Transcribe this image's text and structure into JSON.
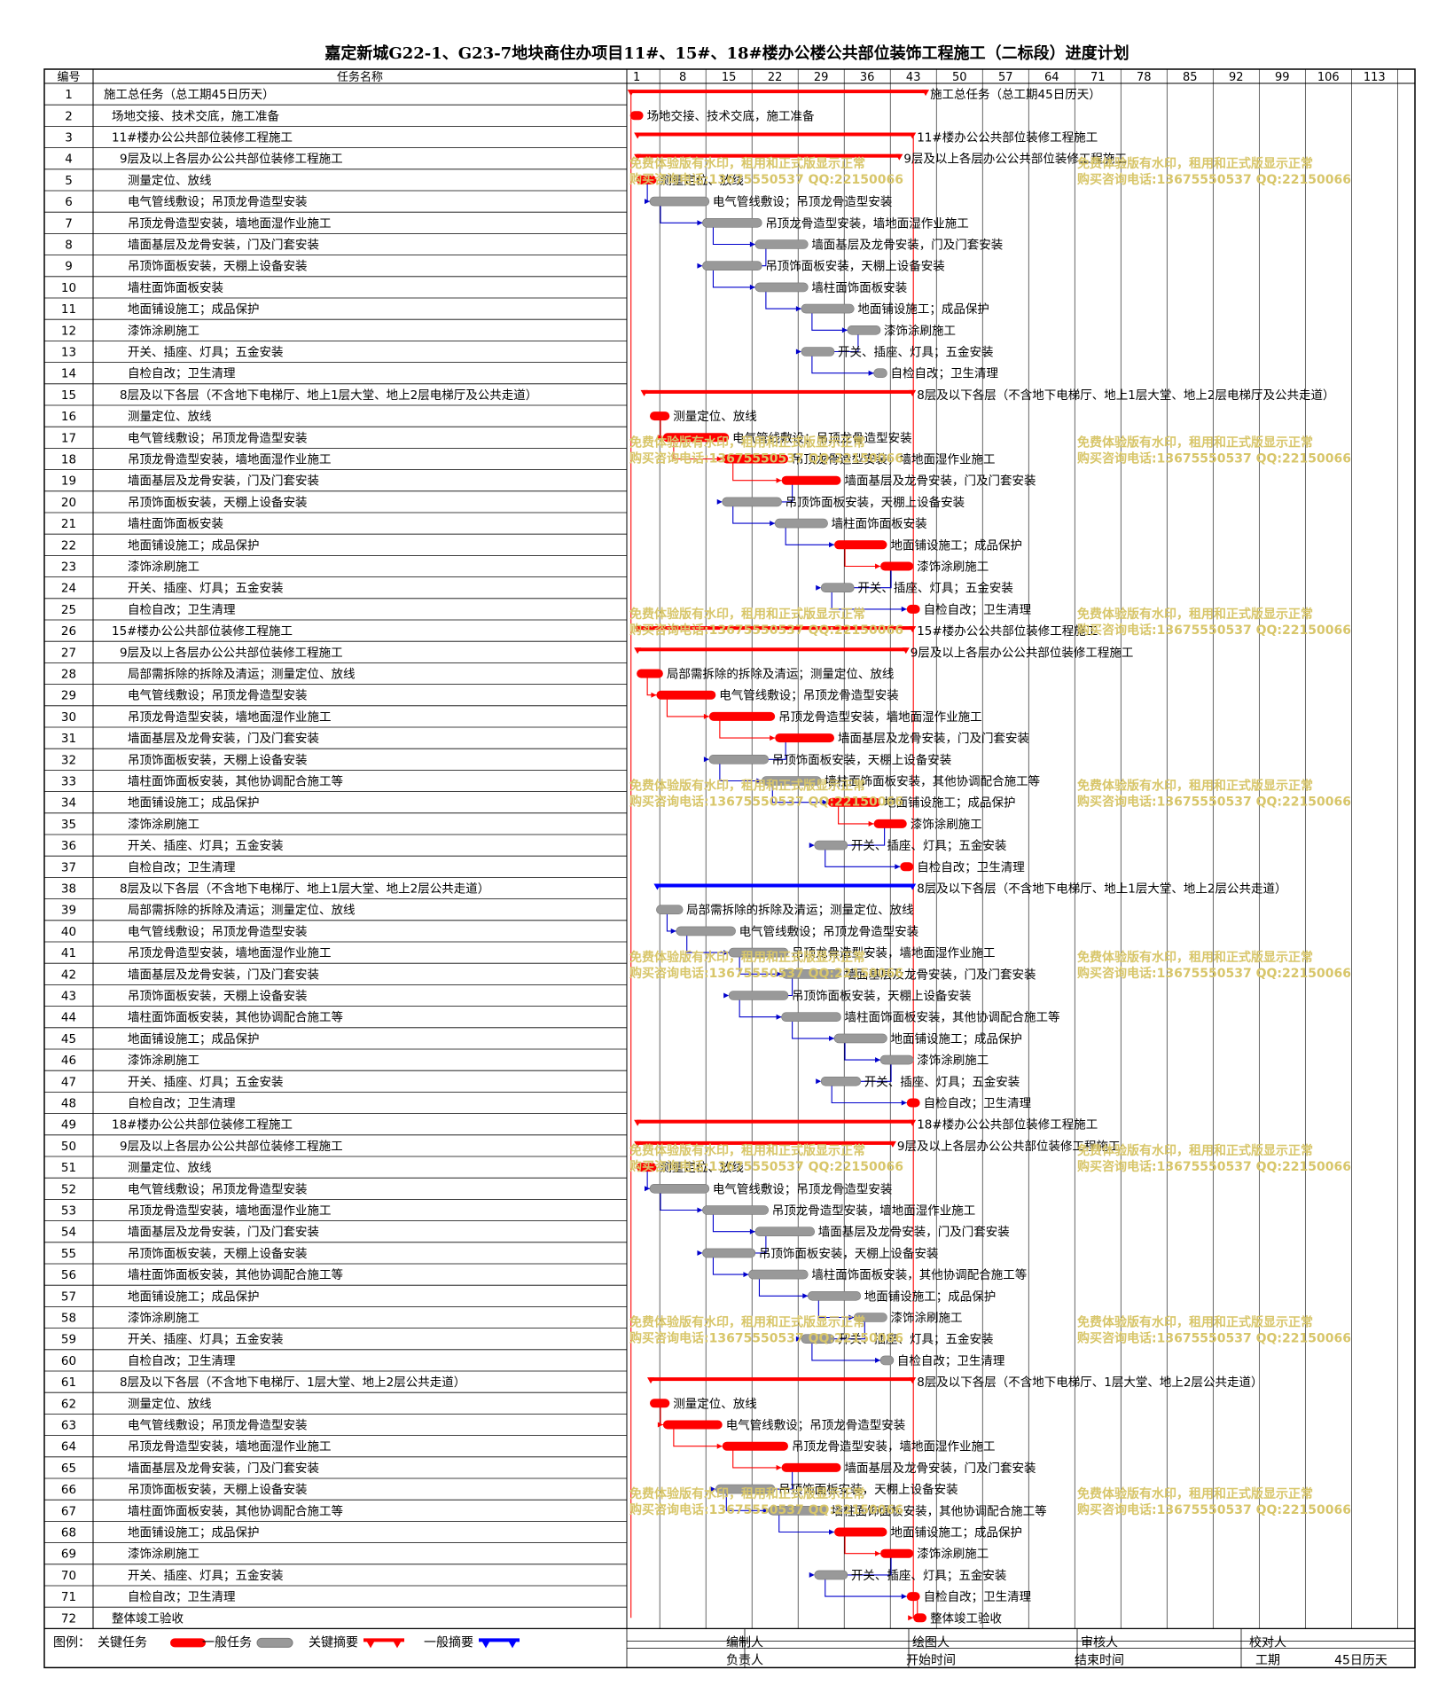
{
  "title": "嘉定新城G22-1、G23-7地块商住办项目11#、15#、18#楼办公楼公共部位装饰工程施工（二标段）进度计划",
  "header": {
    "no_label": "编号",
    "name_label": "任务名称"
  },
  "chart_data": {
    "type": "gantt",
    "title": "嘉定新城G22-1、G23-7地块商住办项目11#、15#、18#楼办公楼公共部位装饰工程施工（二标段）进度计划",
    "time_axis_ticks": [
      1,
      8,
      15,
      22,
      29,
      36,
      43,
      50,
      57,
      64,
      71,
      78,
      85,
      92,
      99,
      106,
      113
    ],
    "x_range": [
      -0.5,
      119
    ],
    "legend_position": "bottom-left",
    "colors": {
      "critical": "#ff0000",
      "normal": "#999999",
      "summary_critical": "#ff0000",
      "summary_normal": "#0000ff",
      "link": "#0000cc",
      "critical_link": "#ff0000"
    },
    "tasks": [
      {
        "id": 1,
        "indent": 0,
        "name": "施工总任务（总工期45日历天）",
        "start": 0,
        "end": 45,
        "kind": "summary_critical"
      },
      {
        "id": 2,
        "indent": 1,
        "name": "场地交接、技术交底，施工准备",
        "start": 0,
        "end": 2,
        "kind": "critical"
      },
      {
        "id": 3,
        "indent": 1,
        "name": "11#楼办公公共部位装修工程施工",
        "start": 1,
        "end": 43,
        "kind": "summary_critical"
      },
      {
        "id": 4,
        "indent": 2,
        "name": "9层及以上各层办公公共部位装修工程施工",
        "start": 1,
        "end": 41,
        "kind": "summary_critical"
      },
      {
        "id": 5,
        "indent": 3,
        "name": "测量定位、放线",
        "start": 1,
        "end": 4,
        "kind": "critical"
      },
      {
        "id": 6,
        "indent": 3,
        "name": "电气管线敷设；吊顶龙骨造型安装",
        "start": 3,
        "end": 12,
        "kind": "normal"
      },
      {
        "id": 7,
        "indent": 3,
        "name": "吊顶龙骨造型安装，墙地面湿作业施工",
        "start": 11,
        "end": 20,
        "kind": "normal"
      },
      {
        "id": 8,
        "indent": 3,
        "name": "墙面基层及龙骨安装，门及门套安装",
        "start": 19,
        "end": 27,
        "kind": "normal"
      },
      {
        "id": 9,
        "indent": 3,
        "name": "吊顶饰面板安装，天棚上设备安装",
        "start": 11,
        "end": 20,
        "kind": "normal"
      },
      {
        "id": 10,
        "indent": 3,
        "name": "墙柱面饰面板安装",
        "start": 19,
        "end": 27,
        "kind": "normal"
      },
      {
        "id": 11,
        "indent": 3,
        "name": "地面铺设施工；成品保护",
        "start": 26,
        "end": 34,
        "kind": "normal"
      },
      {
        "id": 12,
        "indent": 3,
        "name": "漆饰涂刷施工",
        "start": 33,
        "end": 38,
        "kind": "normal"
      },
      {
        "id": 13,
        "indent": 3,
        "name": "开关、插座、灯具；五金安装",
        "start": 26,
        "end": 31,
        "kind": "normal"
      },
      {
        "id": 14,
        "indent": 3,
        "name": "自检自改；卫生清理",
        "start": 37,
        "end": 39,
        "kind": "normal"
      },
      {
        "id": 15,
        "indent": 2,
        "name": "8层及以下各层（不含地下电梯厅、地上1层大堂、地上2层电梯厅及公共走道）",
        "start": 2,
        "end": 43,
        "kind": "summary_critical"
      },
      {
        "id": 16,
        "indent": 3,
        "name": "测量定位、放线",
        "start": 3,
        "end": 6,
        "kind": "critical"
      },
      {
        "id": 17,
        "indent": 3,
        "name": "电气管线敷设；吊顶龙骨造型安装",
        "start": 5,
        "end": 15,
        "kind": "critical"
      },
      {
        "id": 18,
        "indent": 3,
        "name": "吊顶龙骨造型安装，墙地面湿作业施工",
        "start": 14,
        "end": 24,
        "kind": "critical"
      },
      {
        "id": 19,
        "indent": 3,
        "name": "墙面基层及龙骨安装，门及门套安装",
        "start": 23,
        "end": 32,
        "kind": "critical"
      },
      {
        "id": 20,
        "indent": 3,
        "name": "吊顶饰面板安装，天棚上设备安装",
        "start": 14,
        "end": 23,
        "kind": "normal"
      },
      {
        "id": 21,
        "indent": 3,
        "name": "墙柱面饰面板安装",
        "start": 22,
        "end": 30,
        "kind": "normal"
      },
      {
        "id": 22,
        "indent": 3,
        "name": "地面铺设施工；成品保护",
        "start": 31,
        "end": 39,
        "kind": "critical"
      },
      {
        "id": 23,
        "indent": 3,
        "name": "漆饰涂刷施工",
        "start": 38,
        "end": 43,
        "kind": "critical"
      },
      {
        "id": 24,
        "indent": 3,
        "name": "开关、插座、灯具；五金安装",
        "start": 29,
        "end": 34,
        "kind": "normal"
      },
      {
        "id": 25,
        "indent": 3,
        "name": "自检自改；卫生清理",
        "start": 42,
        "end": 44,
        "kind": "critical"
      },
      {
        "id": 26,
        "indent": 1,
        "name": "15#楼办公公共部位装修工程施工",
        "start": 1,
        "end": 43,
        "kind": "summary_critical"
      },
      {
        "id": 27,
        "indent": 2,
        "name": "9层及以上各层办公公共部位装修工程施工",
        "start": 1,
        "end": 42,
        "kind": "summary_critical"
      },
      {
        "id": 28,
        "indent": 3,
        "name": "局部需拆除的拆除及清运；测量定位、放线",
        "start": 1,
        "end": 5,
        "kind": "critical"
      },
      {
        "id": 29,
        "indent": 3,
        "name": "电气管线敷设；吊顶龙骨造型安装",
        "start": 4,
        "end": 13,
        "kind": "critical"
      },
      {
        "id": 30,
        "indent": 3,
        "name": "吊顶龙骨造型安装，墙地面湿作业施工",
        "start": 12,
        "end": 22,
        "kind": "critical"
      },
      {
        "id": 31,
        "indent": 3,
        "name": "墙面基层及龙骨安装，门及门套安装",
        "start": 22,
        "end": 31,
        "kind": "critical"
      },
      {
        "id": 32,
        "indent": 3,
        "name": "吊顶饰面板安装，天棚上设备安装",
        "start": 12,
        "end": 21,
        "kind": "normal"
      },
      {
        "id": 33,
        "indent": 3,
        "name": "墙柱面饰面板安装，其他协调配合施工等",
        "start": 20,
        "end": 29,
        "kind": "normal"
      },
      {
        "id": 34,
        "indent": 3,
        "name": "地面铺设施工；成品保护",
        "start": 30,
        "end": 38,
        "kind": "critical"
      },
      {
        "id": 35,
        "indent": 3,
        "name": "漆饰涂刷施工",
        "start": 37,
        "end": 42,
        "kind": "critical"
      },
      {
        "id": 36,
        "indent": 3,
        "name": "开关、插座、灯具；五金安装",
        "start": 28,
        "end": 33,
        "kind": "normal"
      },
      {
        "id": 37,
        "indent": 3,
        "name": "自检自改；卫生清理",
        "start": 41,
        "end": 43,
        "kind": "critical"
      },
      {
        "id": 38,
        "indent": 2,
        "name": "8层及以下各层（不含地下电梯厅、地上1层大堂、地上2层公共走道）",
        "start": 4,
        "end": 43,
        "kind": "summary_normal"
      },
      {
        "id": 39,
        "indent": 3,
        "name": "局部需拆除的拆除及清运；测量定位、放线",
        "start": 4,
        "end": 8,
        "kind": "normal"
      },
      {
        "id": 40,
        "indent": 3,
        "name": "电气管线敷设；吊顶龙骨造型安装",
        "start": 7,
        "end": 16,
        "kind": "normal"
      },
      {
        "id": 41,
        "indent": 3,
        "name": "吊顶龙骨造型安装，墙地面湿作业施工",
        "start": 15,
        "end": 24,
        "kind": "normal"
      },
      {
        "id": 42,
        "indent": 3,
        "name": "墙面基层及龙骨安装，门及门套安装",
        "start": 23,
        "end": 32,
        "kind": "normal"
      },
      {
        "id": 43,
        "indent": 3,
        "name": "吊顶饰面板安装，天棚上设备安装",
        "start": 15,
        "end": 24,
        "kind": "normal"
      },
      {
        "id": 44,
        "indent": 3,
        "name": "墙柱面饰面板安装，其他协调配合施工等",
        "start": 23,
        "end": 32,
        "kind": "normal"
      },
      {
        "id": 45,
        "indent": 3,
        "name": "地面铺设施工；成品保护",
        "start": 31,
        "end": 39,
        "kind": "normal"
      },
      {
        "id": 46,
        "indent": 3,
        "name": "漆饰涂刷施工",
        "start": 38,
        "end": 43,
        "kind": "normal"
      },
      {
        "id": 47,
        "indent": 3,
        "name": "开关、插座、灯具；五金安装",
        "start": 29,
        "end": 35,
        "kind": "normal"
      },
      {
        "id": 48,
        "indent": 3,
        "name": "自检自改；卫生清理",
        "start": 42,
        "end": 44,
        "kind": "critical"
      },
      {
        "id": 49,
        "indent": 1,
        "name": "18#楼办公公共部位装修工程施工",
        "start": 1,
        "end": 43,
        "kind": "summary_critical"
      },
      {
        "id": 50,
        "indent": 2,
        "name": "9层及以上各层办公公共部位装修工程施工",
        "start": 1,
        "end": 40,
        "kind": "summary_critical"
      },
      {
        "id": 51,
        "indent": 3,
        "name": "测量定位、放线",
        "start": 1,
        "end": 4,
        "kind": "critical"
      },
      {
        "id": 52,
        "indent": 3,
        "name": "电气管线敷设；吊顶龙骨造型安装",
        "start": 3,
        "end": 12,
        "kind": "normal"
      },
      {
        "id": 53,
        "indent": 3,
        "name": "吊顶龙骨造型安装，墙地面湿作业施工",
        "start": 11,
        "end": 21,
        "kind": "normal"
      },
      {
        "id": 54,
        "indent": 3,
        "name": "墙面基层及龙骨安装，门及门套安装",
        "start": 19,
        "end": 28,
        "kind": "normal"
      },
      {
        "id": 55,
        "indent": 3,
        "name": "吊顶饰面板安装，天棚上设备安装",
        "start": 11,
        "end": 19,
        "kind": "normal"
      },
      {
        "id": 56,
        "indent": 3,
        "name": "墙柱面饰面板安装，其他协调配合施工等",
        "start": 18,
        "end": 27,
        "kind": "normal"
      },
      {
        "id": 57,
        "indent": 3,
        "name": "地面铺设施工；成品保护",
        "start": 27,
        "end": 35,
        "kind": "normal"
      },
      {
        "id": 58,
        "indent": 3,
        "name": "漆饰涂刷施工",
        "start": 34,
        "end": 39,
        "kind": "normal"
      },
      {
        "id": 59,
        "indent": 3,
        "name": "开关、插座、灯具；五金安装",
        "start": 26,
        "end": 31,
        "kind": "normal"
      },
      {
        "id": 60,
        "indent": 3,
        "name": "自检自改；卫生清理",
        "start": 38,
        "end": 40,
        "kind": "normal"
      },
      {
        "id": 61,
        "indent": 2,
        "name": "8层及以下各层（不含地下电梯厅、1层大堂、地上2层公共走道）",
        "start": 3,
        "end": 43,
        "kind": "summary_critical"
      },
      {
        "id": 62,
        "indent": 3,
        "name": "测量定位、放线",
        "start": 3,
        "end": 6,
        "kind": "critical"
      },
      {
        "id": 63,
        "indent": 3,
        "name": "电气管线敷设；吊顶龙骨造型安装",
        "start": 5,
        "end": 14,
        "kind": "critical"
      },
      {
        "id": 64,
        "indent": 3,
        "name": "吊顶龙骨造型安装，墙地面湿作业施工",
        "start": 14,
        "end": 24,
        "kind": "critical"
      },
      {
        "id": 65,
        "indent": 3,
        "name": "墙面基层及龙骨安装，门及门套安装",
        "start": 23,
        "end": 32,
        "kind": "critical"
      },
      {
        "id": 66,
        "indent": 3,
        "name": "吊顶饰面板安装，天棚上设备安装",
        "start": 13,
        "end": 22,
        "kind": "normal"
      },
      {
        "id": 67,
        "indent": 3,
        "name": "墙柱面饰面板安装，其他协调配合施工等",
        "start": 21,
        "end": 30,
        "kind": "normal"
      },
      {
        "id": 68,
        "indent": 3,
        "name": "地面铺设施工；成品保护",
        "start": 31,
        "end": 39,
        "kind": "critical"
      },
      {
        "id": 69,
        "indent": 3,
        "name": "漆饰涂刷施工",
        "start": 38,
        "end": 43,
        "kind": "critical"
      },
      {
        "id": 70,
        "indent": 3,
        "name": "开关、插座、灯具；五金安装",
        "start": 28,
        "end": 33,
        "kind": "normal"
      },
      {
        "id": 71,
        "indent": 3,
        "name": "自检自改；卫生清理",
        "start": 42,
        "end": 44,
        "kind": "critical"
      },
      {
        "id": 72,
        "indent": 1,
        "name": "整体竣工验收",
        "start": 43,
        "end": 45,
        "kind": "critical"
      }
    ]
  },
  "watermark": {
    "line1": "免费体验版有水印，租用和正式版显示正常",
    "line2": "购买咨询电话:13675550537 QQ:22150066"
  },
  "footer": {
    "legend_label": "图例：",
    "legend_items": [
      "关键任务",
      "一般任务",
      "关键摘要",
      "一般摘要"
    ],
    "editor": "编制人",
    "drawer": "绘图人",
    "reviewer": "审核人",
    "checker": "校对人",
    "owner": "负责人",
    "start_time": "开始时间",
    "end_time": "结束时间",
    "duration_label": "工期",
    "duration_value": "45日历天"
  }
}
